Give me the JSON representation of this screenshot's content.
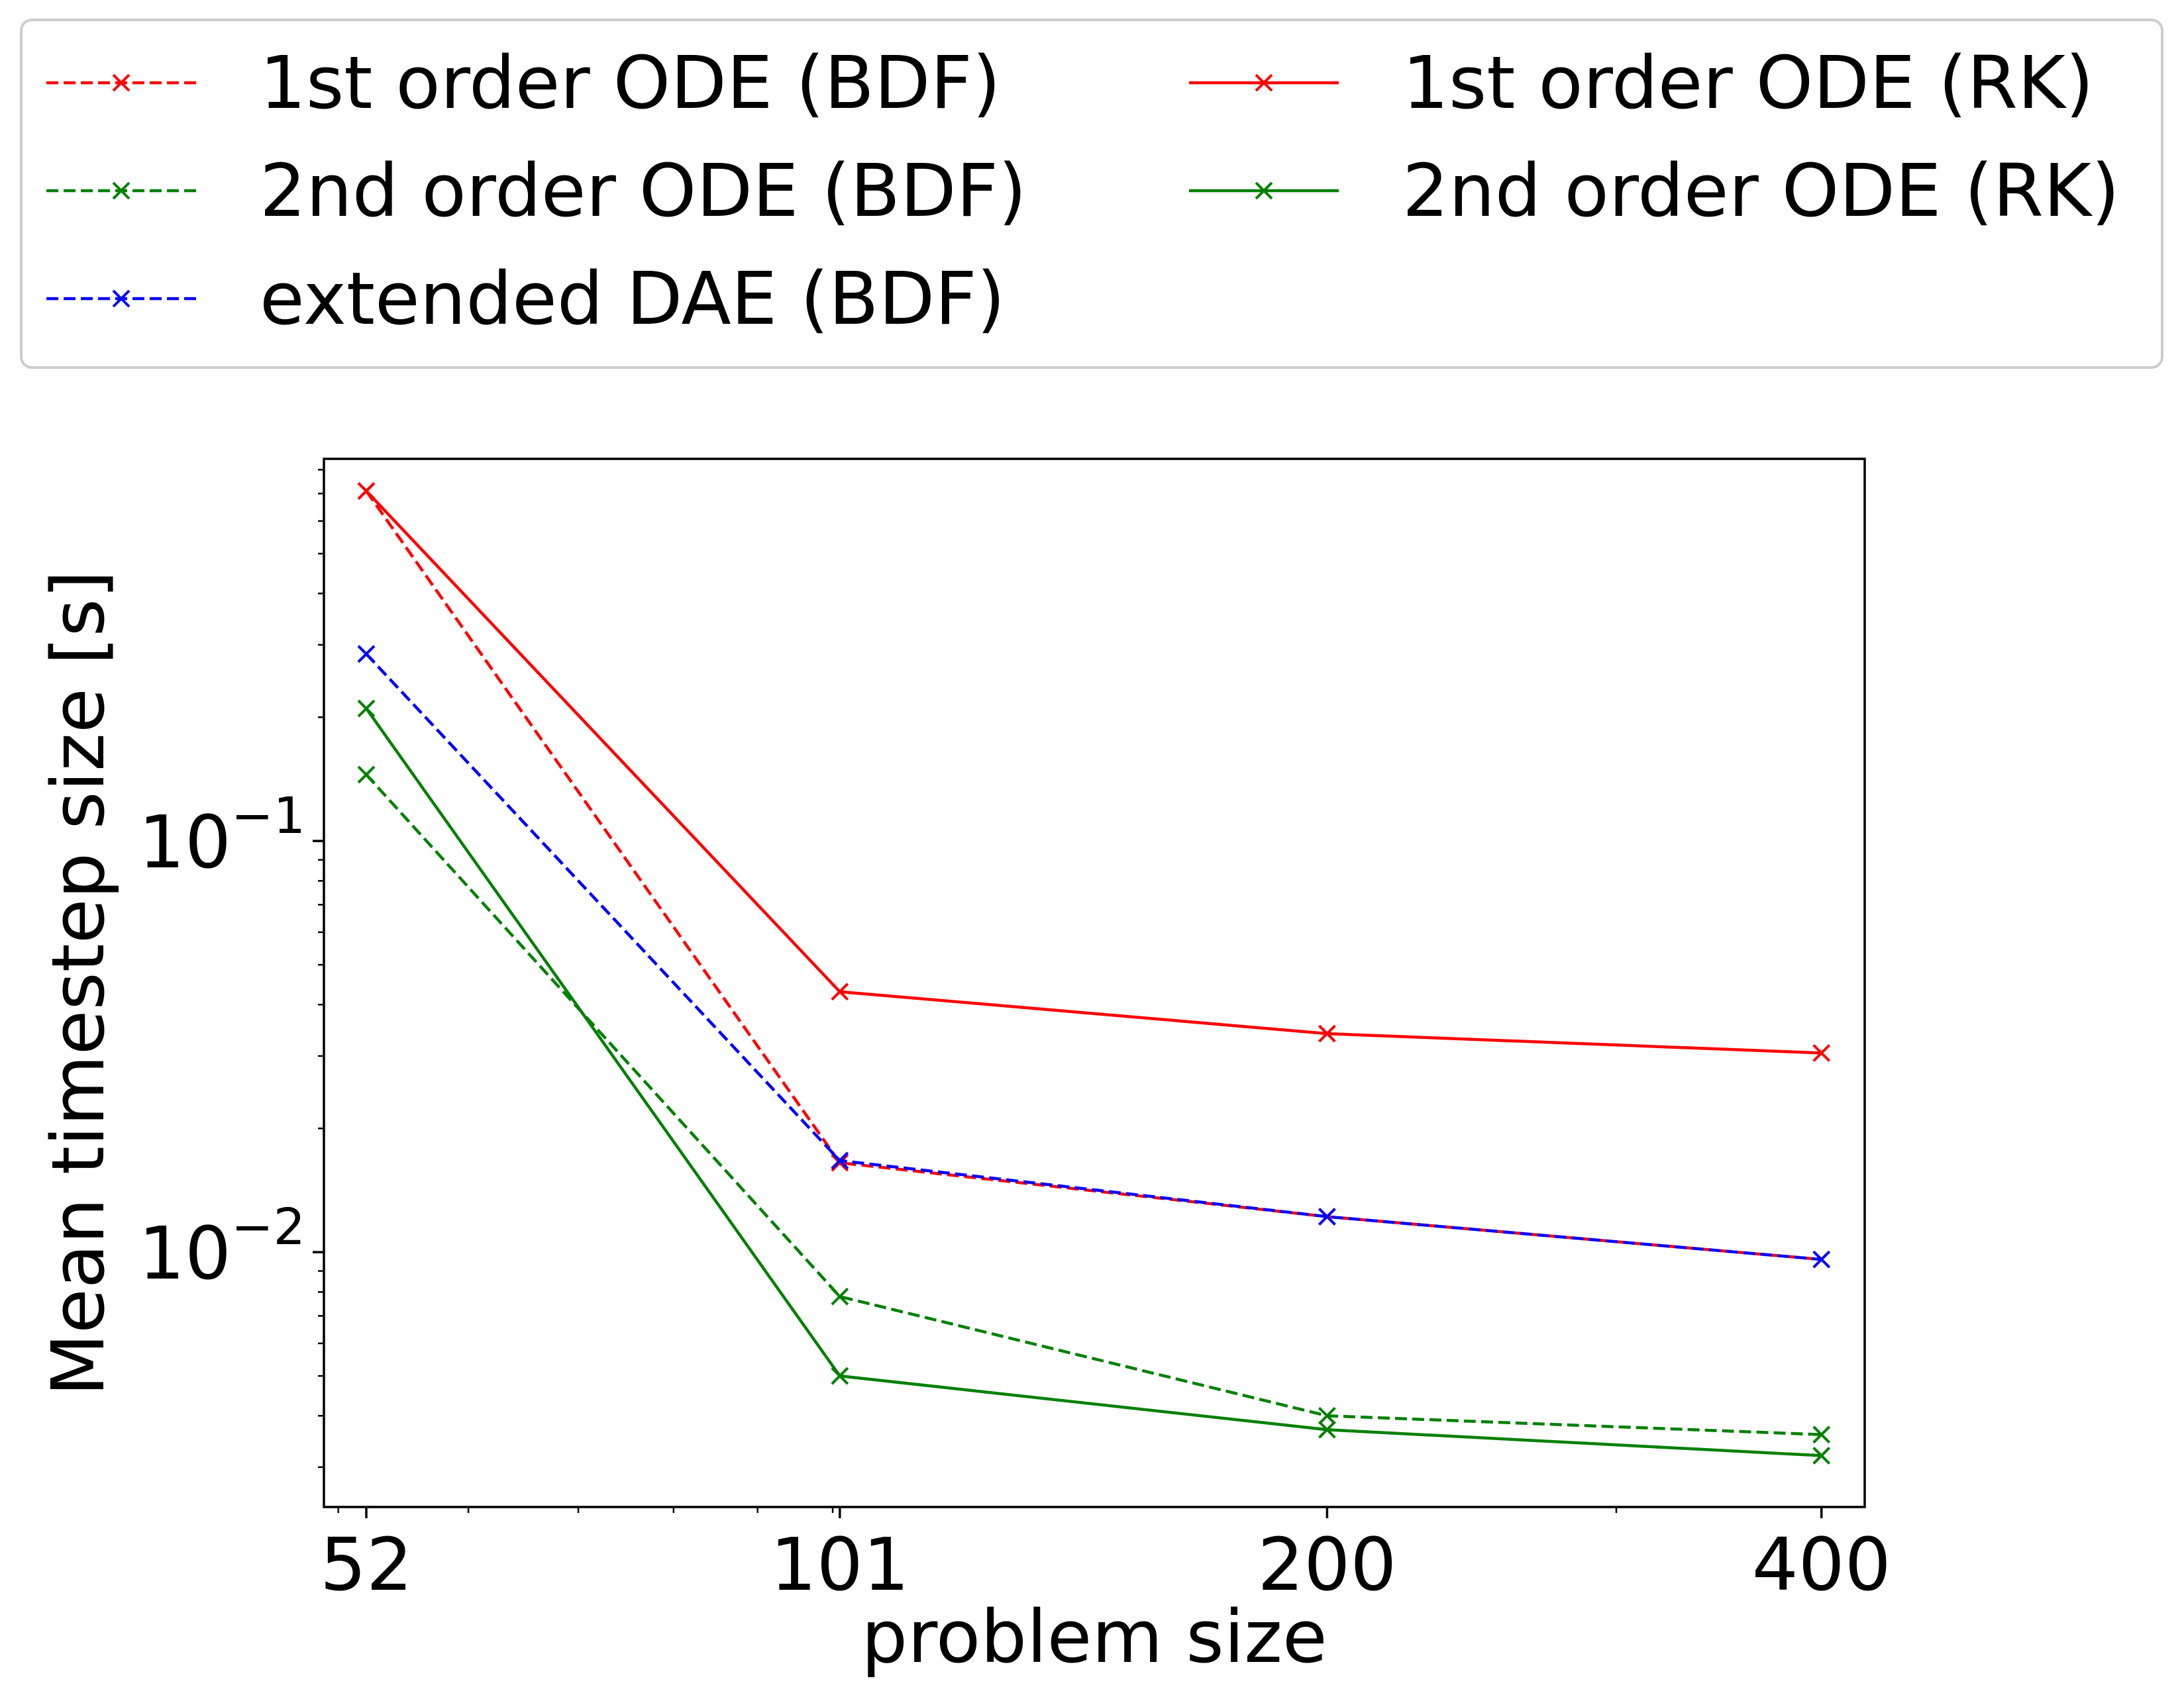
{
  "chart_data": {
    "type": "line",
    "xlabel": "problem size",
    "ylabel": "Mean timestep size [s]",
    "xscale": "log",
    "yscale": "log",
    "x": [
      52,
      101,
      200,
      400
    ],
    "x_tick_labels": [
      "52",
      "101",
      "200",
      "400"
    ],
    "y_ticks": [
      {
        "value": 0.1,
        "base": "10",
        "exp": "−1"
      },
      {
        "value": 0.01,
        "base": "10",
        "exp": "−2"
      }
    ],
    "xlim": [
      49,
      425
    ],
    "ylim": [
      0.0024,
      0.85
    ],
    "grid": false,
    "legend": {
      "position": "top",
      "columns": 2
    },
    "series": [
      {
        "name": "1st order ODE (BDF)",
        "color": "#ff0000",
        "dash": "dashed",
        "marker": "x",
        "values": [
          0.71,
          0.0165,
          0.0122,
          0.0096
        ]
      },
      {
        "name": "2nd order ODE (BDF)",
        "color": "#008000",
        "dash": "dashed",
        "marker": "x",
        "values": [
          0.145,
          0.0078,
          0.004,
          0.0036
        ]
      },
      {
        "name": "extended DAE (BDF)",
        "color": "#0000ff",
        "dash": "dashed",
        "marker": "x",
        "values": [
          0.285,
          0.0167,
          0.0122,
          0.0096
        ]
      },
      {
        "name": "1st order ODE (RK)",
        "color": "#ff0000",
        "dash": "solid",
        "marker": "x",
        "values": [
          0.71,
          0.043,
          0.034,
          0.0305
        ]
      },
      {
        "name": "2nd order ODE (RK)",
        "color": "#008000",
        "dash": "solid",
        "marker": "x",
        "values": [
          0.21,
          0.005,
          0.0037,
          0.0032
        ]
      }
    ]
  }
}
